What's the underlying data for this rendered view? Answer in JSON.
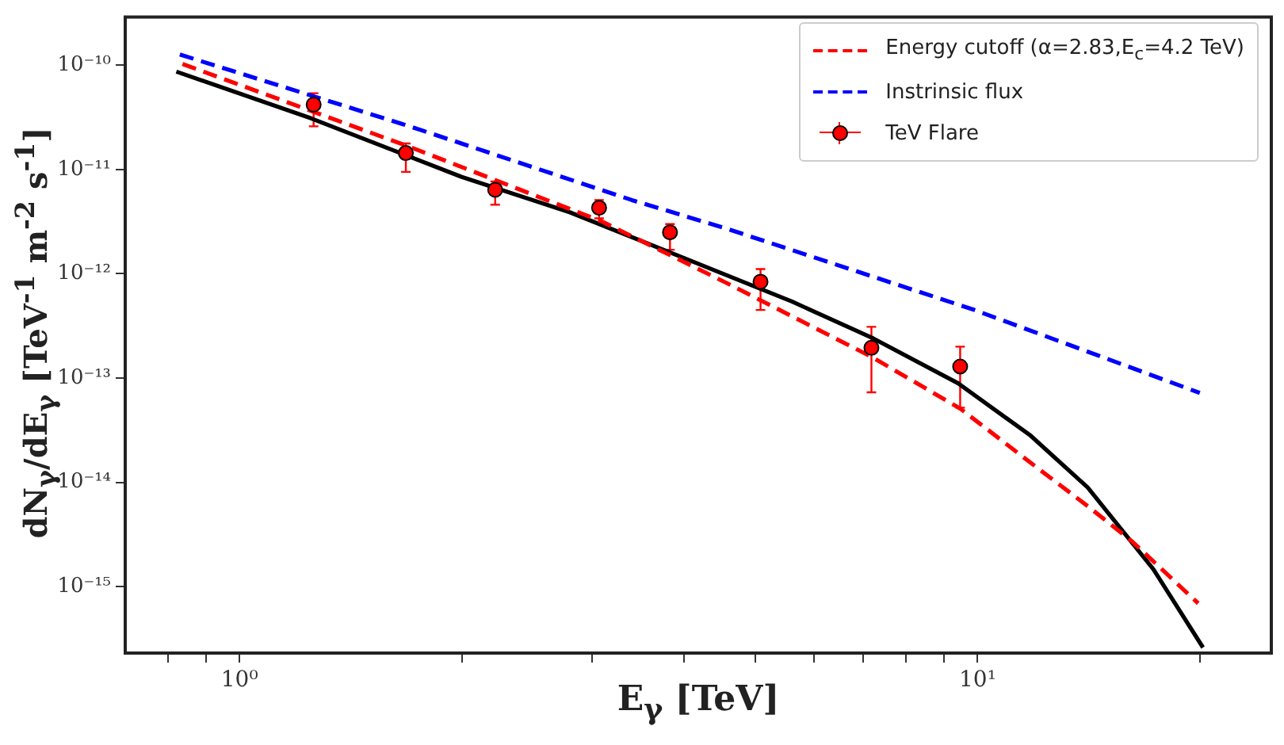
{
  "chart_data": {
    "type": "line",
    "xlabel": "E$_{γ}$ [TeV]",
    "ylabel": "dN$_{γ}$/dE$_{γ}$ [TeV$^{-1}$ m$^{-2}$ s$^{-1}$]",
    "log": "xy",
    "xlim": [
      0.7,
      25
    ],
    "ylim": [
      2.3e-16,
      2.9e-10
    ],
    "xticks": [
      {
        "value": 0.8,
        "label": null
      },
      {
        "value": 0.9,
        "label": null
      },
      {
        "value": 1,
        "label": "10⁰"
      },
      {
        "value": 2,
        "label": null
      },
      {
        "value": 3,
        "label": null
      },
      {
        "value": 4,
        "label": null
      },
      {
        "value": 5,
        "label": null
      },
      {
        "value": 6,
        "label": null
      },
      {
        "value": 7,
        "label": null
      },
      {
        "value": 8,
        "label": null
      },
      {
        "value": 9,
        "label": null
      },
      {
        "value": 10,
        "label": "10¹"
      },
      {
        "value": 20,
        "label": null
      }
    ],
    "yticks": [
      {
        "value": 1e-15,
        "label": "10⁻¹⁵"
      },
      {
        "value": 1e-14,
        "label": "10⁻¹⁴"
      },
      {
        "value": 1e-13,
        "label": "10⁻¹³"
      },
      {
        "value": 1e-12,
        "label": "10⁻¹²"
      },
      {
        "value": 1e-11,
        "label": "10⁻¹¹"
      },
      {
        "value": 1e-10,
        "label": "10⁻¹⁰"
      }
    ],
    "grid": false,
    "legend": "top right",
    "series": [
      {
        "name": "Energy cutoff (α=2.83,E$_{c}$=4.2 TeV)",
        "color": "#ff0000",
        "line_style": "dashed",
        "marker": "none",
        "x": [
          0.837,
          1.7,
          3.09,
          4.58,
          7.18,
          9.47,
          11.9,
          14.1,
          16.2,
          19.9
        ],
        "values": [
          1.03e-10,
          1.65e-11,
          3.2e-12,
          8.1e-13,
          1.6e-13,
          5.1e-14,
          1.47e-14,
          5.9e-15,
          2.7e-15,
          6.9e-16
        ]
      },
      {
        "name": "Instrinsic flux",
        "color": "#0000ff",
        "line_style": "dashed",
        "marker": "none",
        "x": [
          0.83,
          1.7,
          3.4,
          4.58,
          9.9,
          20
        ],
        "values": [
          1.27e-10,
          2.6e-11,
          5.1e-12,
          2.7e-12,
          4.5e-13,
          7.2e-14
        ]
      },
      {
        "type": "scatter",
        "name": "TeV Flare",
        "color": "#ff0000",
        "marker": "circle",
        "x": [
          1.26,
          1.68,
          2.22,
          3.07,
          3.83,
          5.08,
          7.18,
          9.47
        ],
        "values": [
          4.2e-11,
          1.44e-11,
          6.4e-12,
          4.3e-12,
          2.5e-12,
          8.4e-13,
          1.95e-13,
          1.29e-13
        ],
        "errors": [
          [
            2.6e-11,
            5.4e-11
          ],
          [
            9.5e-12,
            1.78e-11
          ],
          [
            4.6e-12,
            7.7e-12
          ],
          [
            3.4e-12,
            5.1e-12
          ],
          [
            1.7e-12,
            3e-12
          ],
          [
            4.5e-13,
            1.11e-12
          ],
          [
            7.3e-14,
            3.1e-13
          ],
          [
            5.2e-14,
            2e-13
          ]
        ]
      },
      {
        "color": "#000000",
        "line_style": "solid",
        "marker": "none",
        "x": [
          0.821,
          1.25,
          2.0,
          2.8,
          3.81,
          5.61,
          7.22,
          9.41,
          11.8,
          14.1,
          17.3,
          20.2
        ],
        "values": [
          8.7e-11,
          3.1e-11,
          8.5e-12,
          3.9e-12,
          1.63e-12,
          5.4e-13,
          2.4e-13,
          8.9e-14,
          2.8e-14,
          8.9e-15,
          1.47e-15,
          2.6e-16
        ]
      }
    ]
  }
}
